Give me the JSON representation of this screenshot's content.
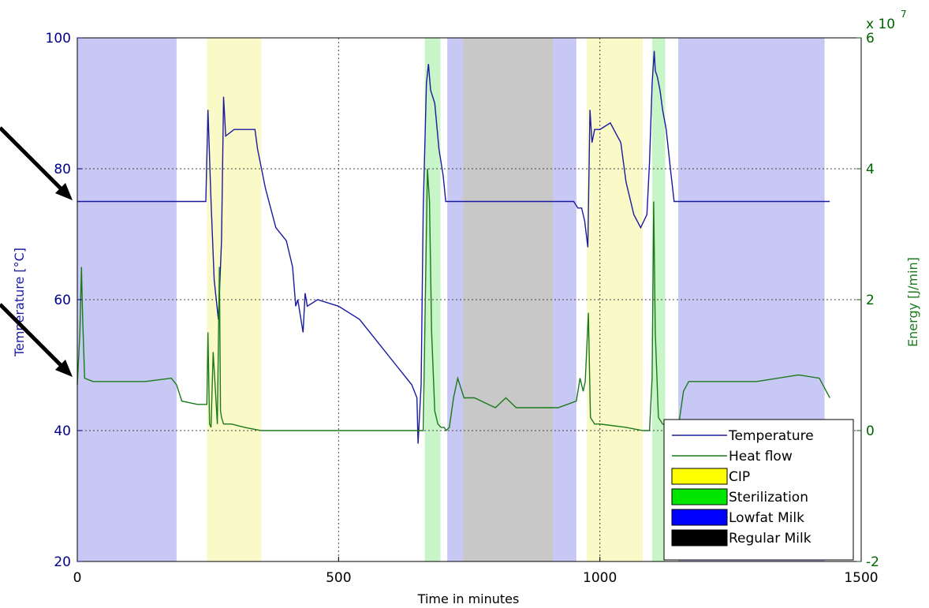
{
  "chart_data": {
    "type": "line",
    "xlabel": "Time in minutes",
    "ylabel_left": "Temperature [°C]",
    "ylabel_right": "Energy [J/min]",
    "right_axis_multiplier": "x 10",
    "right_axis_exponent": "7",
    "xlim": [
      0,
      1500
    ],
    "ylim_left": [
      20,
      100
    ],
    "ylim_right": [
      -2,
      6
    ],
    "x_ticks": [
      0,
      500,
      1000,
      1500
    ],
    "y_ticks_left": [
      20,
      40,
      60,
      80,
      100
    ],
    "y_ticks_right": [
      -2,
      0,
      2,
      4,
      6
    ],
    "grid": true,
    "legend_position": "bottom-right",
    "legend": [
      {
        "label": "Temperature",
        "kind": "line",
        "color": "#1a1aa0"
      },
      {
        "label": "Heat flow",
        "kind": "line",
        "color": "#1a7a1a"
      },
      {
        "label": "CIP",
        "kind": "patch",
        "color": "#ffff00"
      },
      {
        "label": "Sterilization",
        "kind": "patch",
        "color": "#00e600"
      },
      {
        "label": "Lowfat Milk",
        "kind": "patch",
        "color": "#0000ff"
      },
      {
        "label": "Regular Milk",
        "kind": "patch",
        "color": "#000000"
      }
    ],
    "regions": [
      {
        "phase": "Lowfat Milk",
        "start": 0,
        "end": 190,
        "color": "#c8c8f5"
      },
      {
        "phase": "CIP",
        "start": 248,
        "end": 352,
        "color": "#fafac8"
      },
      {
        "phase": "Sterilization",
        "start": 665,
        "end": 695,
        "color": "#c8f5c8"
      },
      {
        "phase": "Lowfat Milk",
        "start": 708,
        "end": 738,
        "color": "#c8c8f5"
      },
      {
        "phase": "Regular Milk",
        "start": 738,
        "end": 910,
        "color": "#c8c8c8"
      },
      {
        "phase": "Lowfat Milk",
        "start": 910,
        "end": 955,
        "color": "#c8c8f5"
      },
      {
        "phase": "CIP",
        "start": 975,
        "end": 1082,
        "color": "#fafac8"
      },
      {
        "phase": "Sterilization",
        "start": 1100,
        "end": 1125,
        "color": "#c8f5c8"
      },
      {
        "phase": "Lowfat Milk",
        "start": 1150,
        "end": 1430,
        "color": "#c8c8f5"
      }
    ],
    "series": [
      {
        "name": "Temperature",
        "axis": "left",
        "color": "#1a1aa0",
        "x": [
          0,
          50,
          100,
          150,
          190,
          220,
          246,
          250,
          256,
          262,
          270,
          276,
          280,
          284,
          300,
          320,
          340,
          345,
          360,
          380,
          400,
          412,
          418,
          422,
          428,
          432,
          436,
          440,
          460,
          500,
          540,
          580,
          610,
          640,
          650,
          652,
          658,
          662,
          668,
          672,
          676,
          684,
          692,
          700,
          705,
          712,
          750,
          800,
          850,
          900,
          950,
          958,
          965,
          971,
          977,
          981,
          985,
          990,
          1000,
          1020,
          1040,
          1050,
          1065,
          1078,
          1090,
          1095,
          1100,
          1104,
          1106,
          1110,
          1115,
          1120,
          1127,
          1135,
          1142,
          1150,
          1200,
          1250,
          1300,
          1350,
          1400,
          1440
        ],
        "y": [
          75,
          75,
          75,
          75,
          75,
          75,
          75,
          89,
          75,
          63,
          57,
          69,
          91,
          85,
          86,
          86,
          86,
          83,
          77,
          71,
          69,
          65,
          59,
          60,
          57,
          55,
          61,
          59,
          60,
          59,
          57,
          53,
          50,
          47,
          45,
          38,
          47,
          74,
          93,
          96,
          92,
          90,
          83,
          79,
          75,
          75,
          75,
          75,
          75,
          75,
          75,
          74,
          74,
          72,
          68,
          89,
          84,
          86,
          86,
          87,
          84,
          78,
          73,
          71,
          73,
          81,
          93,
          98,
          95,
          94,
          92,
          89,
          86,
          80,
          75,
          75,
          75,
          75,
          75,
          75,
          75,
          75
        ]
      },
      {
        "name": "Heat flow",
        "axis": "right",
        "color": "#1a7a1a",
        "x": [
          0,
          5,
          8,
          10,
          14,
          30,
          80,
          130,
          180,
          190,
          200,
          230,
          248,
          250,
          253,
          256,
          260,
          268,
          272,
          274,
          276,
          280,
          295,
          320,
          352,
          400,
          500,
          600,
          650,
          662,
          666,
          670,
          674,
          678,
          684,
          690,
          696,
          702,
          706,
          712,
          720,
          728,
          740,
          760,
          800,
          820,
          840,
          880,
          900,
          920,
          955,
          962,
          968,
          972,
          978,
          982,
          990,
          1000,
          1050,
          1082,
          1095,
          1100,
          1103,
          1106,
          1112,
          1120,
          1135,
          1150,
          1160,
          1170,
          1200,
          1300,
          1380,
          1420,
          1440
        ],
        "y": [
          0.7,
          1.5,
          2.5,
          1.8,
          0.8,
          0.75,
          0.75,
          0.75,
          0.8,
          0.7,
          0.45,
          0.4,
          0.4,
          1.5,
          0.1,
          0.05,
          1.2,
          0.1,
          2.5,
          0.3,
          0.2,
          0.1,
          0.1,
          0.05,
          0,
          0,
          0,
          0,
          0,
          0,
          2.0,
          4.0,
          3.5,
          1.5,
          0.3,
          0.1,
          0.05,
          0.05,
          0,
          0.05,
          0.5,
          0.8,
          0.5,
          0.5,
          0.35,
          0.5,
          0.35,
          0.35,
          0.35,
          0.35,
          0.45,
          0.8,
          0.6,
          0.75,
          1.8,
          0.2,
          0.1,
          0.1,
          0.05,
          0,
          0,
          0.8,
          3.5,
          1.5,
          0.2,
          0.1,
          0.05,
          0.05,
          0.6,
          0.75,
          0.75,
          0.75,
          0.85,
          0.8,
          0.5
        ]
      }
    ]
  }
}
